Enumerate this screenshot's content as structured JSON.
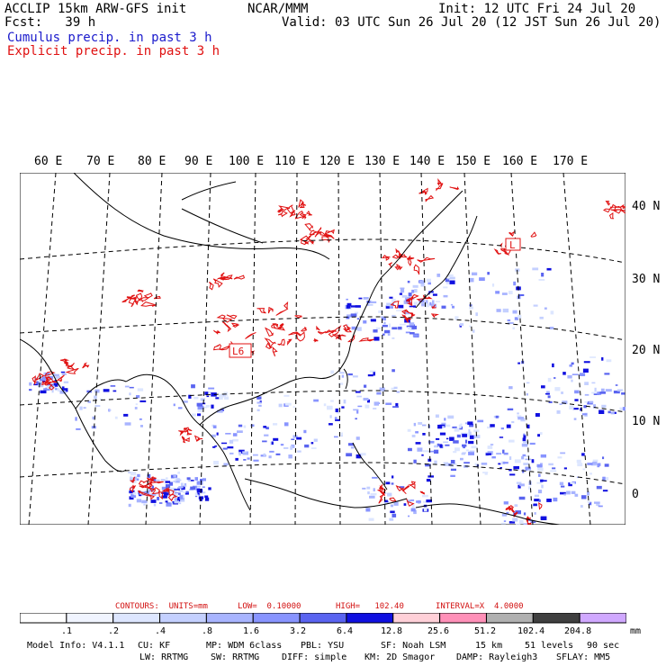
{
  "header": {
    "model": "ACCLIP 15km ARW-GFS init",
    "org": "NCAR/MMM",
    "init": "Init: 12 UTC Fri 24 Jul 20",
    "fcst": "Fcst:   39 h",
    "valid": "Valid: 03 UTC Sun 26 Jul 20 (12 JST Sun 26 Jul 20)",
    "legend_cumulus": "Cumulus precip. in past 3 h",
    "legend_explicit": "Explicit precip. in past 3 h"
  },
  "map": {
    "lon_labels": [
      "60 E",
      "70 E",
      "80 E",
      "90 E",
      "100 E",
      "110 E",
      "120 E",
      "130 E",
      "140 E",
      "150 E",
      "160 E",
      "170 E"
    ],
    "lat_labels": [
      "40 N",
      "30 N",
      "20 N",
      "10 N",
      "0"
    ],
    "center_labels": [
      "L6",
      "L"
    ],
    "colors": {
      "explicit": "#e01010",
      "cumulus": "#3344ee",
      "coast": "#000000",
      "grid": "#000000"
    }
  },
  "contour_info": {
    "contours": "CONTOURS:  UNITS=mm",
    "low": "LOW=  0.10000",
    "high": "HIGH=   102.40",
    "interval": "INTERVAL=X  4.0000"
  },
  "colorbar": {
    "labels": [
      ".1",
      ".2",
      ".4",
      ".8",
      "1.6",
      "3.2",
      "6.4",
      "12.8",
      "25.6",
      "51.2",
      "102.4",
      "204.8"
    ],
    "unit": "mm",
    "colors": [
      "#ffffff",
      "#f0f4ff",
      "#dde6ff",
      "#c4d0ff",
      "#a8b4ff",
      "#8894ff",
      "#5a64f0",
      "#1010e0",
      "#ffd0d8",
      "#ff90b8",
      "#b0b0b0",
      "#404040",
      "#d0a8ff"
    ]
  },
  "model_info": {
    "line1": [
      "Model Info: V4.1.1",
      "CU: KF",
      "MP: WDM 6class",
      "PBL: YSU",
      "SF: Noah LSM",
      "15 km",
      "51 levels",
      "90 sec"
    ],
    "line2": [
      "LW: RRTMG",
      "SW: RRTMG",
      "DIFF: simple",
      "KM: 2D Smagor",
      "DAMP: Rayleigh3",
      "SFLAY: MM5"
    ]
  }
}
